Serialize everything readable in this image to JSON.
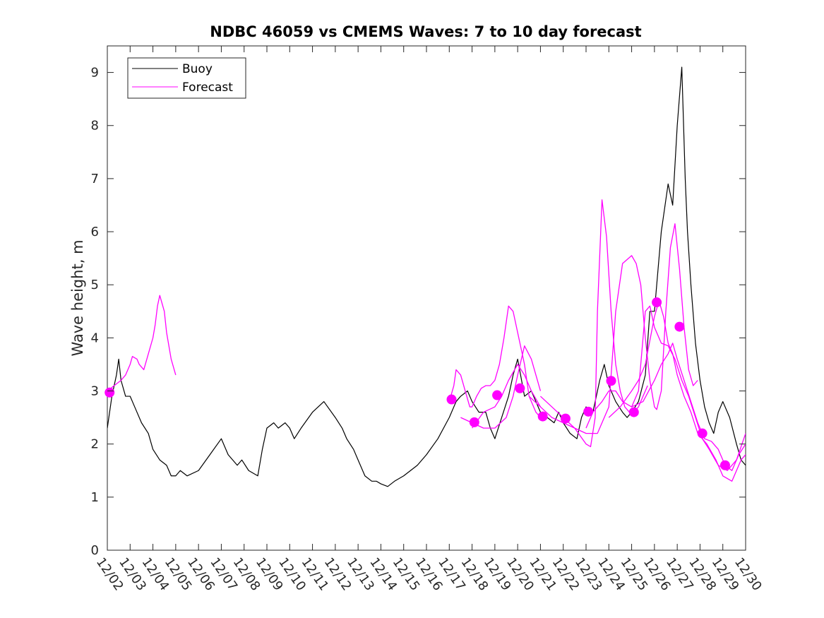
{
  "chart_data": {
    "type": "line",
    "title": "NDBC 46059 vs CMEMS Waves: 7 to 10 day forecast",
    "xlabel": "",
    "ylabel": "Wave height, m",
    "xlim": [
      0,
      28
    ],
    "ylim": [
      0,
      9.5
    ],
    "yticks": [
      0,
      1,
      2,
      3,
      4,
      5,
      6,
      7,
      8,
      9
    ],
    "xtick_labels": [
      "12/02",
      "12/03",
      "12/04",
      "12/05",
      "12/06",
      "12/07",
      "12/08",
      "12/09",
      "12/10",
      "12/11",
      "12/12",
      "12/13",
      "12/14",
      "12/15",
      "12/16",
      "12/17",
      "12/18",
      "12/19",
      "12/20",
      "12/21",
      "12/22",
      "12/23",
      "12/24",
      "12/25",
      "12/26",
      "12/27",
      "12/28",
      "12/29",
      "12/30"
    ],
    "x_units": "days since 12/02",
    "legend": {
      "placement": "top-left",
      "entries": [
        {
          "name": "Buoy",
          "color": "#000000"
        },
        {
          "name": "Forecast",
          "color": "#ff00ff"
        }
      ]
    },
    "series": [
      {
        "name": "Buoy",
        "color": "#000000",
        "x": [
          0,
          0.2,
          0.4,
          0.5,
          0.6,
          0.8,
          1.0,
          1.2,
          1.5,
          1.8,
          2.0,
          2.3,
          2.6,
          2.8,
          3.0,
          3.2,
          3.5,
          4.0,
          4.5,
          5.0,
          5.3,
          5.5,
          5.7,
          5.9,
          6.2,
          6.6,
          6.8,
          7.0,
          7.3,
          7.5,
          7.8,
          8.0,
          8.2,
          8.5,
          9.0,
          9.5,
          10.0,
          10.3,
          10.5,
          10.8,
          11.0,
          11.3,
          11.6,
          11.8,
          12.0,
          12.3,
          12.6,
          13.0,
          13.3,
          13.6,
          14.0,
          14.5,
          15.0,
          15.3,
          15.5,
          15.8,
          16.0,
          16.3,
          16.6,
          16.8,
          17.0,
          17.3,
          17.6,
          17.8,
          18.0,
          18.3,
          18.6,
          18.8,
          19.0,
          19.3,
          19.6,
          19.8,
          20.0,
          20.3,
          20.6,
          20.8,
          21.0,
          21.3,
          21.6,
          21.8,
          22.0,
          22.3,
          22.6,
          22.8,
          23.0,
          23.3,
          23.6,
          23.8,
          24.0,
          24.3,
          24.6,
          24.8,
          25.0,
          25.2,
          25.35,
          25.45,
          25.6,
          25.8,
          26.0,
          26.2,
          26.4,
          26.6,
          26.8,
          27.0,
          27.3,
          27.6,
          27.8,
          28.0
        ],
        "values": [
          2.3,
          2.9,
          3.3,
          3.6,
          3.2,
          2.9,
          2.9,
          2.7,
          2.4,
          2.2,
          1.9,
          1.7,
          1.6,
          1.4,
          1.4,
          1.5,
          1.4,
          1.5,
          1.8,
          2.1,
          1.8,
          1.7,
          1.6,
          1.7,
          1.5,
          1.4,
          1.9,
          2.3,
          2.4,
          2.3,
          2.4,
          2.3,
          2.1,
          2.3,
          2.6,
          2.8,
          2.5,
          2.3,
          2.1,
          1.9,
          1.7,
          1.4,
          1.3,
          1.3,
          1.25,
          1.2,
          1.3,
          1.4,
          1.5,
          1.6,
          1.8,
          2.1,
          2.5,
          2.8,
          2.9,
          3.0,
          2.8,
          2.6,
          2.6,
          2.3,
          2.1,
          2.5,
          2.9,
          3.3,
          3.6,
          2.9,
          3.0,
          2.8,
          2.6,
          2.5,
          2.4,
          2.6,
          2.4,
          2.2,
          2.1,
          2.5,
          2.7,
          2.6,
          3.2,
          3.5,
          3.1,
          2.8,
          2.6,
          2.5,
          2.6,
          2.8,
          3.3,
          4.5,
          4.5,
          6.0,
          6.9,
          6.5,
          8.0,
          9.1,
          7.0,
          6.0,
          5.0,
          3.9,
          3.2,
          2.7,
          2.4,
          2.2,
          2.6,
          2.8,
          2.5,
          2.0,
          1.7,
          1.6
        ]
      },
      {
        "name": "Forecast",
        "color": "#ff00ff",
        "segments": [
          {
            "x": [
              0,
              0.3,
              0.6,
              0.8,
              1.0,
              1.1,
              1.3,
              1.4,
              1.6,
              1.8,
              2.0,
              2.1,
              2.2,
              2.3,
              2.5,
              2.6,
              2.8,
              3.0
            ],
            "values": [
              3.0,
              3.1,
              3.2,
              3.3,
              3.5,
              3.65,
              3.6,
              3.5,
              3.4,
              3.7,
              4.0,
              4.25,
              4.6,
              4.8,
              4.5,
              4.1,
              3.6,
              3.3
            ]
          },
          {
            "x": [
              15.0,
              15.2,
              15.3,
              15.5,
              15.7,
              15.9,
              16.0,
              16.2,
              16.4,
              16.6,
              16.8,
              17.0,
              17.2,
              17.4,
              17.6,
              17.8,
              18.0,
              18.3,
              18.5,
              18.8,
              19.0
            ],
            "values": [
              2.8,
              3.1,
              3.4,
              3.3,
              3.0,
              2.7,
              2.7,
              2.9,
              3.05,
              3.1,
              3.1,
              3.2,
              3.5,
              4.0,
              4.6,
              4.5,
              4.1,
              3.5,
              2.9,
              2.6,
              2.5
            ]
          },
          {
            "x": [
              15.5,
              16.0,
              16.5,
              17.0,
              17.5,
              17.8,
              18.0,
              18.3,
              18.6,
              19.0
            ],
            "values": [
              2.5,
              2.4,
              2.3,
              2.3,
              2.5,
              2.9,
              3.3,
              3.85,
              3.6,
              3.0
            ]
          },
          {
            "x": [
              16.0,
              16.5,
              17.0,
              17.3,
              17.6,
              18.0,
              18.3,
              18.6,
              19.0
            ],
            "values": [
              2.3,
              2.6,
              2.7,
              2.9,
              3.2,
              3.5,
              3.3,
              3.0,
              2.7
            ]
          },
          {
            "x": [
              18.5,
              19.0,
              19.5,
              20.0,
              20.5,
              21.0,
              21.2,
              21.4,
              21.5,
              21.7,
              21.9,
              22.1,
              22.3,
              22.5,
              22.7,
              22.9,
              23.1,
              23.3,
              23.5,
              23.7
            ],
            "values": [
              2.9,
              2.7,
              2.5,
              2.4,
              2.3,
              2.0,
              1.95,
              2.5,
              4.5,
              6.6,
              5.9,
              4.5,
              3.5,
              3.0,
              2.7,
              2.6,
              2.6,
              2.7,
              2.9,
              3.1
            ]
          },
          {
            "x": [
              19.0,
              19.5,
              20.0,
              20.5,
              21.0,
              21.5,
              22.0,
              22.3,
              22.6,
              23.0,
              23.2,
              23.4,
              23.6,
              23.8,
              24.0,
              24.1,
              24.3,
              24.5,
              24.7,
              24.9,
              25.1,
              25.3,
              25.5,
              25.7,
              25.9
            ],
            "values": [
              2.9,
              2.7,
              2.5,
              2.3,
              2.2,
              2.2,
              2.7,
              4.5,
              5.4,
              5.55,
              5.4,
              5.0,
              4.0,
              3.2,
              2.7,
              2.65,
              3.0,
              4.5,
              5.7,
              6.15,
              5.3,
              4.2,
              3.4,
              3.1,
              3.2
            ]
          },
          {
            "x": [
              21.0,
              21.3,
              21.7,
              22.0,
              22.3,
              22.6,
              23.0,
              23.3,
              23.6,
              23.8,
              24.0,
              24.3,
              24.6,
              24.9,
              25.2,
              25.5,
              25.8,
              26.1,
              26.4,
              26.8,
              27.2,
              27.6,
              28.0
            ],
            "values": [
              2.3,
              2.6,
              2.8,
              3.0,
              3.0,
              2.8,
              2.7,
              3.0,
              4.5,
              4.6,
              4.2,
              3.9,
              3.85,
              3.6,
              3.2,
              2.9,
              2.5,
              2.1,
              1.9,
              1.6,
              1.5,
              1.7,
              2.2
            ]
          },
          {
            "x": [
              22.0,
              22.5,
              23.0,
              23.3,
              23.6,
              24.0,
              24.2,
              24.4,
              24.6,
              24.8,
              25.0,
              25.3,
              25.6,
              25.9,
              26.3,
              26.7,
              27.0,
              27.4,
              27.8,
              28.0
            ],
            "values": [
              2.5,
              2.7,
              3.0,
              3.2,
              3.5,
              4.4,
              4.7,
              4.4,
              3.9,
              3.7,
              3.3,
              2.9,
              2.6,
              2.2,
              2.0,
              1.7,
              1.4,
              1.3,
              1.7,
              1.8
            ]
          },
          {
            "x": [
              23.0,
              23.5,
              24.0,
              24.3,
              24.6,
              24.8,
              25.0,
              25.3,
              25.6,
              25.9,
              26.2,
              26.5,
              26.8,
              27.1,
              27.4,
              27.7,
              28.0
            ],
            "values": [
              2.7,
              2.8,
              3.2,
              3.5,
              3.7,
              3.9,
              3.6,
              3.2,
              2.8,
              2.4,
              2.1,
              2.05,
              1.9,
              1.6,
              1.5,
              1.8,
              2.0
            ]
          }
        ]
      },
      {
        "name": "Forecast markers",
        "color": "#ff00ff",
        "x": [
          0.1,
          15.1,
          16.1,
          17.1,
          18.1,
          19.1,
          20.1,
          21.1,
          22.1,
          23.1,
          24.1,
          25.1,
          26.1,
          27.1
        ],
        "values": [
          2.97,
          2.84,
          2.41,
          2.92,
          3.05,
          2.52,
          2.48,
          2.61,
          3.19,
          2.6,
          4.67,
          4.21,
          2.2,
          1.6
        ]
      }
    ]
  }
}
